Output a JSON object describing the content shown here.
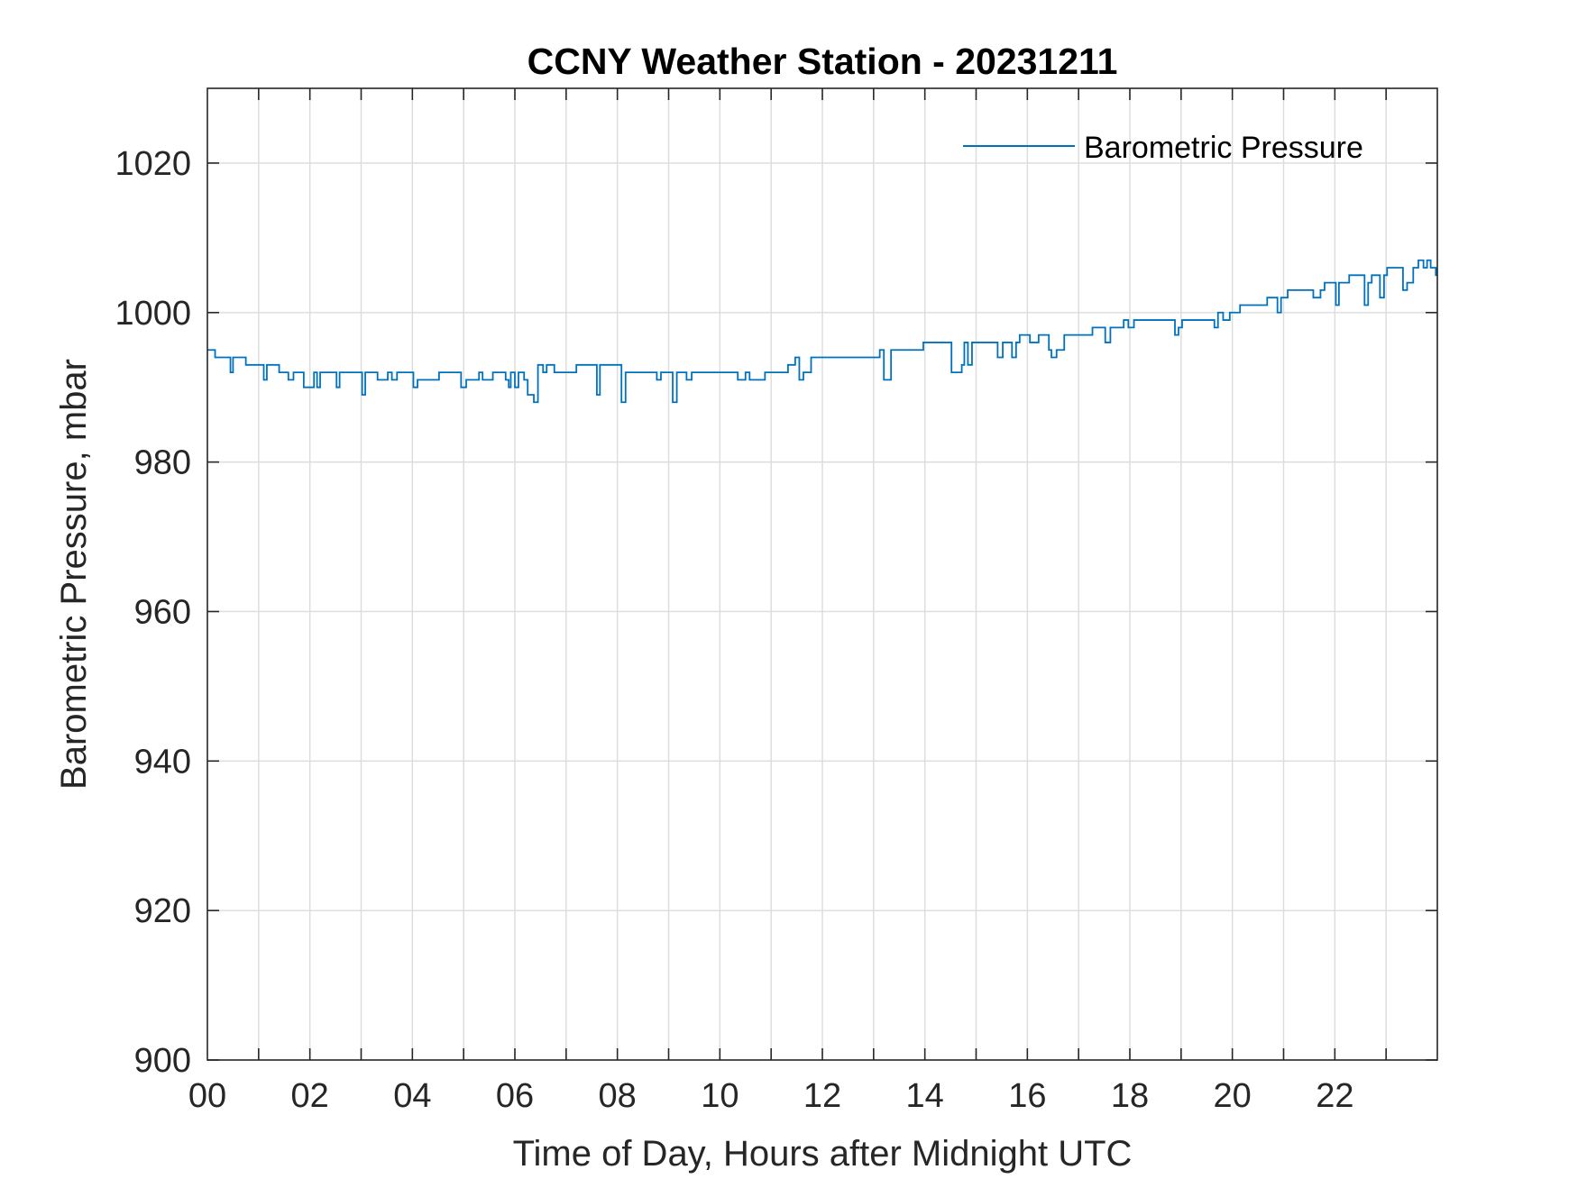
{
  "chart_data": {
    "type": "line",
    "title": "CCNY Weather Station - 20231211",
    "xlabel": "Time of Day, Hours after Midnight UTC",
    "ylabel": "Barometric Pressure, mbar",
    "xlim": [
      0,
      24
    ],
    "ylim": [
      900,
      1030
    ],
    "xticks": [
      0,
      2,
      4,
      6,
      8,
      10,
      12,
      14,
      16,
      18,
      20,
      22
    ],
    "xtick_labels": [
      "00",
      "02",
      "04",
      "06",
      "08",
      "10",
      "12",
      "14",
      "16",
      "18",
      "20",
      "22"
    ],
    "yticks": [
      900,
      920,
      940,
      960,
      980,
      1000,
      1020
    ],
    "ytick_labels": [
      "900",
      "920",
      "940",
      "960",
      "980",
      "1000",
      "1020"
    ],
    "grid": true,
    "legend_position": "top-right",
    "series": [
      {
        "name": "Barometric Pressure",
        "color": "#0072BD",
        "step": true,
        "points": [
          [
            0.0,
            995
          ],
          [
            0.15,
            994
          ],
          [
            0.45,
            994
          ],
          [
            0.45,
            992
          ],
          [
            0.5,
            992
          ],
          [
            0.5,
            994
          ],
          [
            0.72,
            994
          ],
          [
            0.75,
            993
          ],
          [
            1.07,
            993
          ],
          [
            1.1,
            991
          ],
          [
            1.14,
            991
          ],
          [
            1.16,
            993
          ],
          [
            1.35,
            993
          ],
          [
            1.4,
            992
          ],
          [
            1.55,
            992
          ],
          [
            1.58,
            991
          ],
          [
            1.66,
            991
          ],
          [
            1.68,
            992
          ],
          [
            1.85,
            992
          ],
          [
            1.88,
            990
          ],
          [
            2.05,
            990
          ],
          [
            2.08,
            992
          ],
          [
            2.12,
            992
          ],
          [
            2.14,
            990
          ],
          [
            2.18,
            990
          ],
          [
            2.2,
            992
          ],
          [
            2.5,
            992
          ],
          [
            2.52,
            990
          ],
          [
            2.56,
            990
          ],
          [
            2.58,
            992
          ],
          [
            3.0,
            992
          ],
          [
            3.02,
            989
          ],
          [
            3.06,
            989
          ],
          [
            3.08,
            992
          ],
          [
            3.3,
            992
          ],
          [
            3.32,
            991
          ],
          [
            3.5,
            991
          ],
          [
            3.52,
            992
          ],
          [
            3.58,
            992
          ],
          [
            3.6,
            991
          ],
          [
            3.68,
            991
          ],
          [
            3.7,
            992
          ],
          [
            4.0,
            992
          ],
          [
            4.02,
            990
          ],
          [
            4.08,
            990
          ],
          [
            4.1,
            991
          ],
          [
            4.5,
            991
          ],
          [
            4.52,
            992
          ],
          [
            4.92,
            992
          ],
          [
            4.95,
            990
          ],
          [
            5.02,
            990
          ],
          [
            5.05,
            991
          ],
          [
            5.28,
            991
          ],
          [
            5.3,
            992
          ],
          [
            5.35,
            992
          ],
          [
            5.37,
            991
          ],
          [
            5.55,
            991
          ],
          [
            5.57,
            992
          ],
          [
            5.8,
            992
          ],
          [
            5.82,
            991
          ],
          [
            5.86,
            991
          ],
          [
            5.88,
            990
          ],
          [
            5.9,
            990
          ],
          [
            5.92,
            992
          ],
          [
            5.98,
            992
          ],
          [
            6.0,
            990
          ],
          [
            6.05,
            990
          ],
          [
            6.07,
            992
          ],
          [
            6.15,
            992
          ],
          [
            6.18,
            991
          ],
          [
            6.23,
            991
          ],
          [
            6.25,
            989
          ],
          [
            6.35,
            989
          ],
          [
            6.37,
            988
          ],
          [
            6.42,
            988
          ],
          [
            6.45,
            993
          ],
          [
            6.52,
            993
          ],
          [
            6.55,
            992
          ],
          [
            6.6,
            992
          ],
          [
            6.62,
            993
          ],
          [
            6.74,
            993
          ],
          [
            6.77,
            992
          ],
          [
            7.18,
            992
          ],
          [
            7.2,
            993
          ],
          [
            7.58,
            993
          ],
          [
            7.6,
            989
          ],
          [
            7.64,
            989
          ],
          [
            7.66,
            993
          ],
          [
            8.05,
            993
          ],
          [
            8.08,
            988
          ],
          [
            8.13,
            988
          ],
          [
            8.16,
            992
          ],
          [
            8.75,
            992
          ],
          [
            8.77,
            991
          ],
          [
            8.82,
            991
          ],
          [
            8.85,
            992
          ],
          [
            9.05,
            992
          ],
          [
            9.08,
            988
          ],
          [
            9.13,
            988
          ],
          [
            9.16,
            992
          ],
          [
            9.32,
            992
          ],
          [
            9.35,
            991
          ],
          [
            9.42,
            991
          ],
          [
            9.45,
            992
          ],
          [
            10.32,
            992
          ],
          [
            10.35,
            991
          ],
          [
            10.48,
            991
          ],
          [
            10.5,
            992
          ],
          [
            10.55,
            992
          ],
          [
            10.58,
            991
          ],
          [
            10.85,
            991
          ],
          [
            10.88,
            992
          ],
          [
            11.3,
            992
          ],
          [
            11.33,
            993
          ],
          [
            11.45,
            993
          ],
          [
            11.47,
            994
          ],
          [
            11.52,
            994
          ],
          [
            11.55,
            991
          ],
          [
            11.6,
            991
          ],
          [
            11.63,
            992
          ],
          [
            11.75,
            992
          ],
          [
            11.78,
            994
          ],
          [
            13.1,
            994
          ],
          [
            13.12,
            995
          ],
          [
            13.18,
            995
          ],
          [
            13.2,
            991
          ],
          [
            13.32,
            991
          ],
          [
            13.34,
            995
          ],
          [
            13.95,
            995
          ],
          [
            13.97,
            996
          ],
          [
            14.5,
            996
          ],
          [
            14.52,
            992
          ],
          [
            14.7,
            992
          ],
          [
            14.72,
            993
          ],
          [
            14.75,
            993
          ],
          [
            14.77,
            996
          ],
          [
            14.82,
            996
          ],
          [
            14.84,
            993
          ],
          [
            14.9,
            993
          ],
          [
            14.92,
            996
          ],
          [
            15.4,
            996
          ],
          [
            15.42,
            994
          ],
          [
            15.5,
            994
          ],
          [
            15.52,
            996
          ],
          [
            15.68,
            996
          ],
          [
            15.7,
            994
          ],
          [
            15.76,
            994
          ],
          [
            15.78,
            996
          ],
          [
            15.82,
            996
          ],
          [
            15.85,
            997
          ],
          [
            16.03,
            997
          ],
          [
            16.05,
            996
          ],
          [
            16.2,
            996
          ],
          [
            16.22,
            997
          ],
          [
            16.4,
            997
          ],
          [
            16.42,
            995
          ],
          [
            16.45,
            995
          ],
          [
            16.47,
            994
          ],
          [
            16.55,
            994
          ],
          [
            16.57,
            995
          ],
          [
            16.7,
            995
          ],
          [
            16.72,
            997
          ],
          [
            17.25,
            997
          ],
          [
            17.27,
            998
          ],
          [
            17.5,
            998
          ],
          [
            17.52,
            996
          ],
          [
            17.6,
            996
          ],
          [
            17.62,
            998
          ],
          [
            17.85,
            998
          ],
          [
            17.88,
            999
          ],
          [
            17.95,
            999
          ],
          [
            17.97,
            998
          ],
          [
            18.05,
            998
          ],
          [
            18.08,
            999
          ],
          [
            18.85,
            999
          ],
          [
            18.88,
            997
          ],
          [
            18.92,
            997
          ],
          [
            18.95,
            998
          ],
          [
            19.0,
            998
          ],
          [
            19.02,
            999
          ],
          [
            19.62,
            999
          ],
          [
            19.65,
            998
          ],
          [
            19.7,
            998
          ],
          [
            19.72,
            1000
          ],
          [
            19.8,
            1000
          ],
          [
            19.82,
            999
          ],
          [
            19.92,
            999
          ],
          [
            19.95,
            1000
          ],
          [
            20.12,
            1000
          ],
          [
            20.15,
            1001
          ],
          [
            20.65,
            1001
          ],
          [
            20.68,
            1002
          ],
          [
            20.85,
            1002
          ],
          [
            20.88,
            1000
          ],
          [
            20.92,
            1000
          ],
          [
            20.95,
            1002
          ],
          [
            21.05,
            1002
          ],
          [
            21.08,
            1003
          ],
          [
            21.55,
            1003
          ],
          [
            21.58,
            1002
          ],
          [
            21.7,
            1002
          ],
          [
            21.72,
            1003
          ],
          [
            21.78,
            1003
          ],
          [
            21.8,
            1004
          ],
          [
            22.0,
            1004
          ],
          [
            22.02,
            1001
          ],
          [
            22.06,
            1001
          ],
          [
            22.08,
            1004
          ],
          [
            22.25,
            1004
          ],
          [
            22.28,
            1005
          ],
          [
            22.55,
            1005
          ],
          [
            22.58,
            1001
          ],
          [
            22.62,
            1001
          ],
          [
            22.65,
            1004
          ],
          [
            22.7,
            1004
          ],
          [
            22.72,
            1005
          ],
          [
            22.85,
            1005
          ],
          [
            22.88,
            1002
          ],
          [
            22.93,
            1002
          ],
          [
            22.96,
            1005
          ],
          [
            23.0,
            1005
          ],
          [
            23.02,
            1006
          ],
          [
            23.3,
            1006
          ],
          [
            23.33,
            1003
          ],
          [
            23.38,
            1003
          ],
          [
            23.41,
            1004
          ],
          [
            23.5,
            1004
          ],
          [
            23.53,
            1006
          ],
          [
            23.6,
            1006
          ],
          [
            23.63,
            1007
          ],
          [
            23.7,
            1007
          ],
          [
            23.73,
            1006
          ],
          [
            23.78,
            1006
          ],
          [
            23.8,
            1007
          ],
          [
            23.85,
            1007
          ],
          [
            23.87,
            1006
          ],
          [
            23.95,
            1006
          ],
          [
            23.97,
            1005
          ],
          [
            23.99,
            1006
          ]
        ]
      }
    ]
  }
}
